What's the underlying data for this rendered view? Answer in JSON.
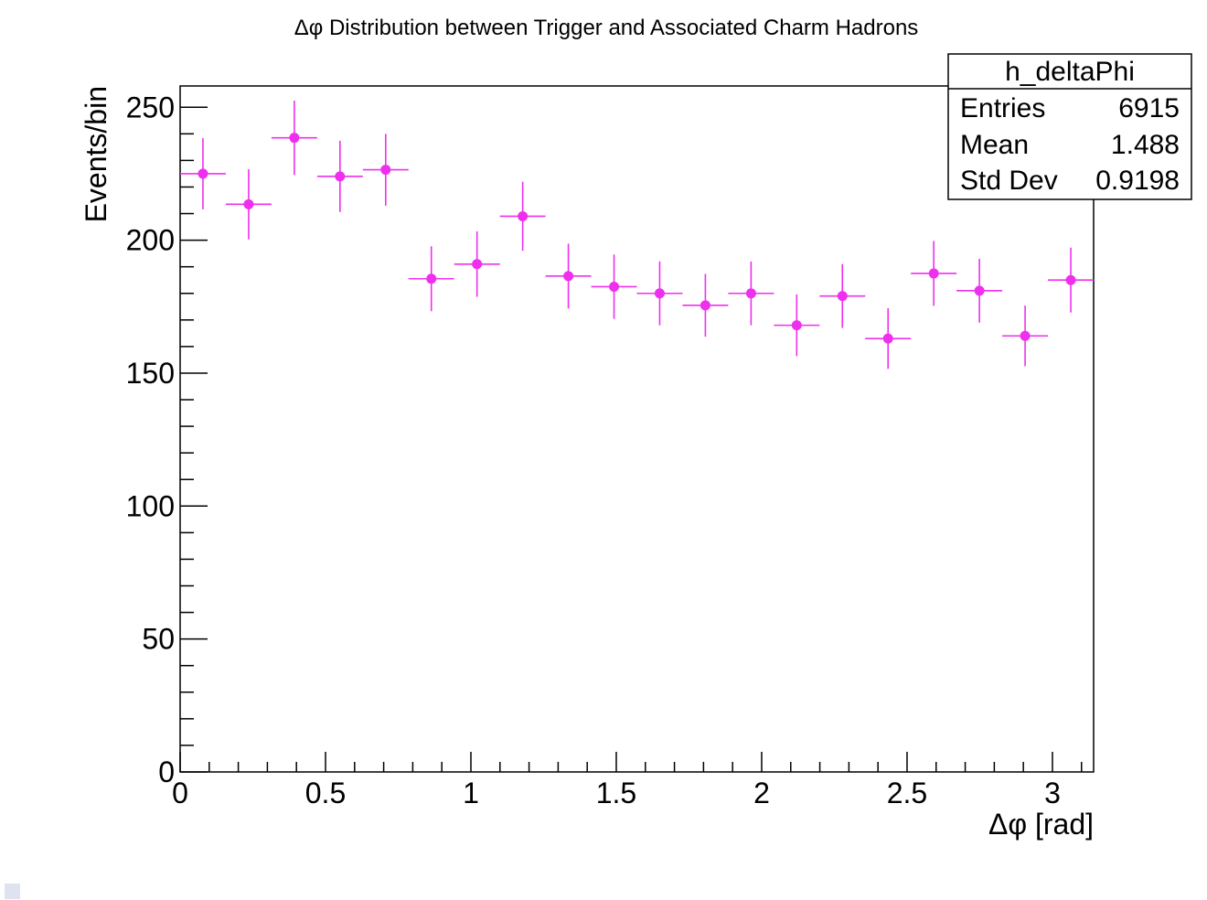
{
  "chart_data": {
    "type": "scatter",
    "title": "Δφ Distribution between Trigger and Associated Charm Hadrons",
    "xlabel": "Δφ [rad]",
    "ylabel": "Events/bin",
    "xlim": [
      0,
      3.1416
    ],
    "ylim": [
      0,
      258
    ],
    "x_ticks": [
      "0",
      "0.5",
      "1",
      "1.5",
      "2",
      "2.5",
      "3"
    ],
    "y_ticks": [
      "0",
      "50",
      "100",
      "150",
      "200",
      "250"
    ],
    "grid": false,
    "marker_color": "#ee30ee",
    "bin_width": 0.15708,
    "points": [
      {
        "x": 0.0785,
        "y": 225,
        "err": 13.4
      },
      {
        "x": 0.2356,
        "y": 213.5,
        "err": 13.2
      },
      {
        "x": 0.3927,
        "y": 238.5,
        "err": 14.0
      },
      {
        "x": 0.5498,
        "y": 224,
        "err": 13.4
      },
      {
        "x": 0.7069,
        "y": 226.5,
        "err": 13.5
      },
      {
        "x": 0.8639,
        "y": 185.5,
        "err": 12.2
      },
      {
        "x": 1.021,
        "y": 191,
        "err": 12.3
      },
      {
        "x": 1.1781,
        "y": 209,
        "err": 13.0
      },
      {
        "x": 1.3352,
        "y": 186.5,
        "err": 12.2
      },
      {
        "x": 1.4923,
        "y": 182.5,
        "err": 12.1
      },
      {
        "x": 1.6493,
        "y": 180,
        "err": 12.0
      },
      {
        "x": 1.8064,
        "y": 175.5,
        "err": 11.8
      },
      {
        "x": 1.9635,
        "y": 180,
        "err": 12.0
      },
      {
        "x": 2.1206,
        "y": 168,
        "err": 11.6
      },
      {
        "x": 2.2777,
        "y": 179,
        "err": 12.0
      },
      {
        "x": 2.4347,
        "y": 163,
        "err": 11.4
      },
      {
        "x": 2.5918,
        "y": 187.5,
        "err": 12.2
      },
      {
        "x": 2.7489,
        "y": 181,
        "err": 12.0
      },
      {
        "x": 2.906,
        "y": 164,
        "err": 11.4
      },
      {
        "x": 3.0631,
        "y": 185,
        "err": 12.2
      }
    ],
    "stats_box": {
      "name": "h_deltaPhi",
      "rows": [
        {
          "label": "Entries",
          "value": "6915"
        },
        {
          "label": "Mean",
          "value": "1.488"
        },
        {
          "label": "Std Dev",
          "value": "0.9198"
        }
      ]
    }
  }
}
